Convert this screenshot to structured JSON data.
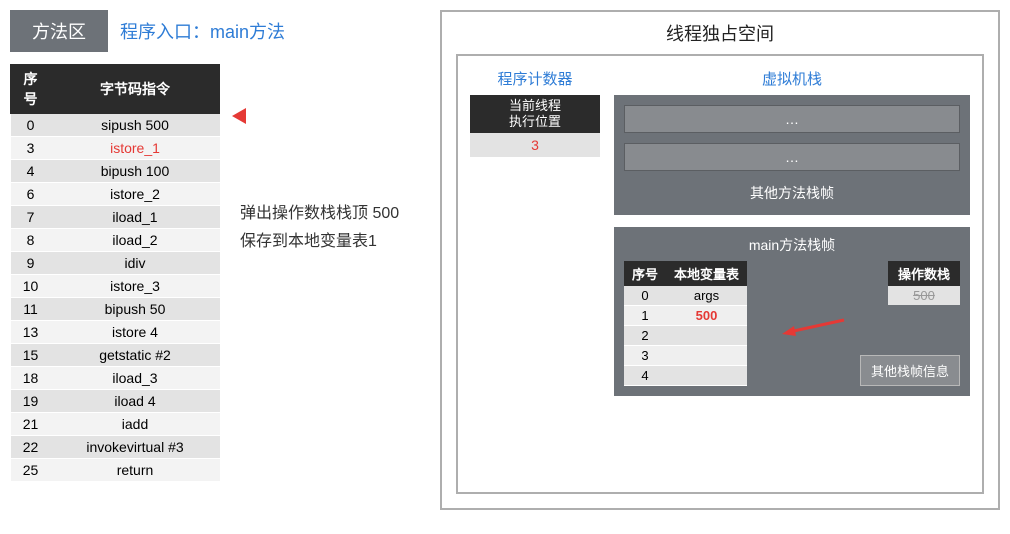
{
  "colors": {
    "accent_blue": "#2e7cd6",
    "accent_red": "#e53935",
    "panel_gray": "#6d7278",
    "slot_gray": "#888b8f",
    "row_odd": "#e3e3e3",
    "row_even": "#f3f3f3",
    "header_black": "#2b2b2b",
    "border_gray": "#aeaeae"
  },
  "left": {
    "method_area_label": "方法区",
    "entry_label": "程序入口：main方法",
    "table_headers": {
      "seq": "序号",
      "instr": "字节码指令"
    },
    "active_index": 1,
    "rows": [
      {
        "seq": "0",
        "instr": "sipush 500"
      },
      {
        "seq": "3",
        "instr": "istore_1"
      },
      {
        "seq": "4",
        "instr": "bipush 100"
      },
      {
        "seq": "6",
        "instr": "istore_2"
      },
      {
        "seq": "7",
        "instr": "iload_1"
      },
      {
        "seq": "8",
        "instr": "iload_2"
      },
      {
        "seq": "9",
        "instr": "idiv"
      },
      {
        "seq": "10",
        "instr": "istore_3"
      },
      {
        "seq": "11",
        "instr": "bipush 50"
      },
      {
        "seq": "13",
        "instr": "istore 4"
      },
      {
        "seq": "15",
        "instr": "getstatic #2"
      },
      {
        "seq": "18",
        "instr": "iload_3"
      },
      {
        "seq": "19",
        "instr": "iload 4"
      },
      {
        "seq": "21",
        "instr": "iadd"
      },
      {
        "seq": "22",
        "instr": "invokevirtual #3"
      },
      {
        "seq": "25",
        "instr": "return"
      }
    ],
    "annotation_line1": "弹出操作数栈栈顶 500",
    "annotation_line2": "保存到本地变量表1"
  },
  "right": {
    "thread_space_title": "线程独占空间",
    "pc": {
      "title": "程序计数器",
      "header_line1": "当前线程",
      "header_line2": "执行位置",
      "value": "3"
    },
    "vm_stack": {
      "title": "虚拟机栈",
      "slot_placeholder": "…",
      "other_frames_label": "其他方法栈帧",
      "main_frame": {
        "title": "main方法栈帧",
        "lv_headers": {
          "seq": "序号",
          "val": "本地变量表"
        },
        "lv_rows": [
          {
            "seq": "0",
            "val": "args",
            "red": false
          },
          {
            "seq": "1",
            "val": "500",
            "red": true
          },
          {
            "seq": "2",
            "val": "",
            "red": false
          },
          {
            "seq": "3",
            "val": "",
            "red": false
          },
          {
            "seq": "4",
            "val": "",
            "red": false
          }
        ],
        "op_header": "操作数栈",
        "op_rows": [
          {
            "val": "500",
            "strike": true
          }
        ],
        "other_info_label": "其他栈帧信息"
      }
    }
  }
}
